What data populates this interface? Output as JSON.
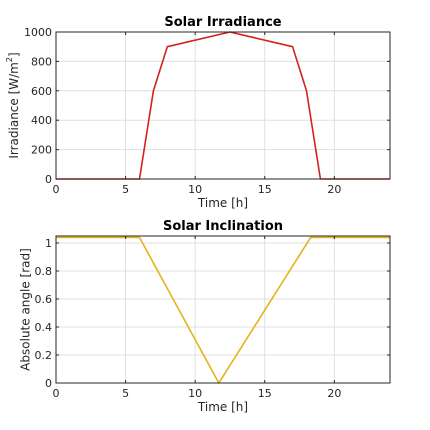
{
  "chart_data": [
    {
      "type": "line",
      "title": "Solar Irradiance",
      "xlabel": "Time [h]",
      "ylabel_main": "Irradiance [W/m",
      "ylabel_sup": "2",
      "ylabel_end": "]",
      "xlim": [
        0,
        24
      ],
      "ylim": [
        0,
        1000
      ],
      "xticks": [
        0,
        5,
        10,
        15,
        20
      ],
      "yticks": [
        0,
        200,
        400,
        600,
        800,
        1000
      ],
      "grid": true,
      "series": [
        {
          "color": "#d62020",
          "x": [
            0,
            6,
            7,
            8,
            12.5,
            17,
            18,
            19,
            24
          ],
          "y": [
            0,
            0,
            600,
            900,
            1000,
            900,
            600,
            0,
            0
          ]
        }
      ]
    },
    {
      "type": "line",
      "title": "Solar Inclination",
      "xlabel": "Time [h]",
      "ylabel": "Absolute angle [rad]",
      "xlim": [
        0,
        24
      ],
      "ylim": [
        0,
        1.05
      ],
      "xticks": [
        0,
        5,
        10,
        15,
        20
      ],
      "yticks": [
        0,
        0.2,
        0.4,
        0.6,
        0.8,
        1
      ],
      "grid": true,
      "series": [
        {
          "color": "#e5b31a",
          "x": [
            0,
            6,
            11.7,
            18.3,
            24
          ],
          "y": [
            1.04,
            1.04,
            0,
            1.04,
            1.04
          ]
        }
      ]
    }
  ]
}
